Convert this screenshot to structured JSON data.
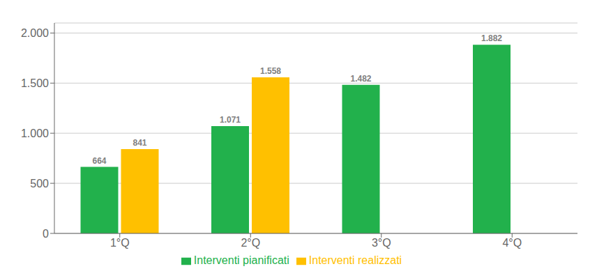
{
  "chart_data": {
    "type": "bar",
    "categories": [
      "1°Q",
      "2°Q",
      "3°Q",
      "4°Q"
    ],
    "series": [
      {
        "name": "Interventi pianificati",
        "color": "#22b14c",
        "values": [
          664,
          1071,
          1482,
          1882
        ],
        "value_labels": [
          "664",
          "1.071",
          "1.482",
          "1.882"
        ]
      },
      {
        "name": "Interventi realizzati",
        "color": "#ffc000",
        "values": [
          841,
          1558,
          null,
          null
        ],
        "value_labels": [
          "841",
          "1.558",
          null,
          null
        ]
      }
    ],
    "ylim": [
      0,
      2100
    ],
    "yticks": [
      0,
      500,
      {
        "value": 1000,
        "label": "1.000"
      },
      {
        "value": 1500,
        "label": "1.500"
      },
      {
        "value": 2000,
        "label": "2.000"
      }
    ],
    "grid": true,
    "legend": "bottom",
    "data_labels": true
  }
}
